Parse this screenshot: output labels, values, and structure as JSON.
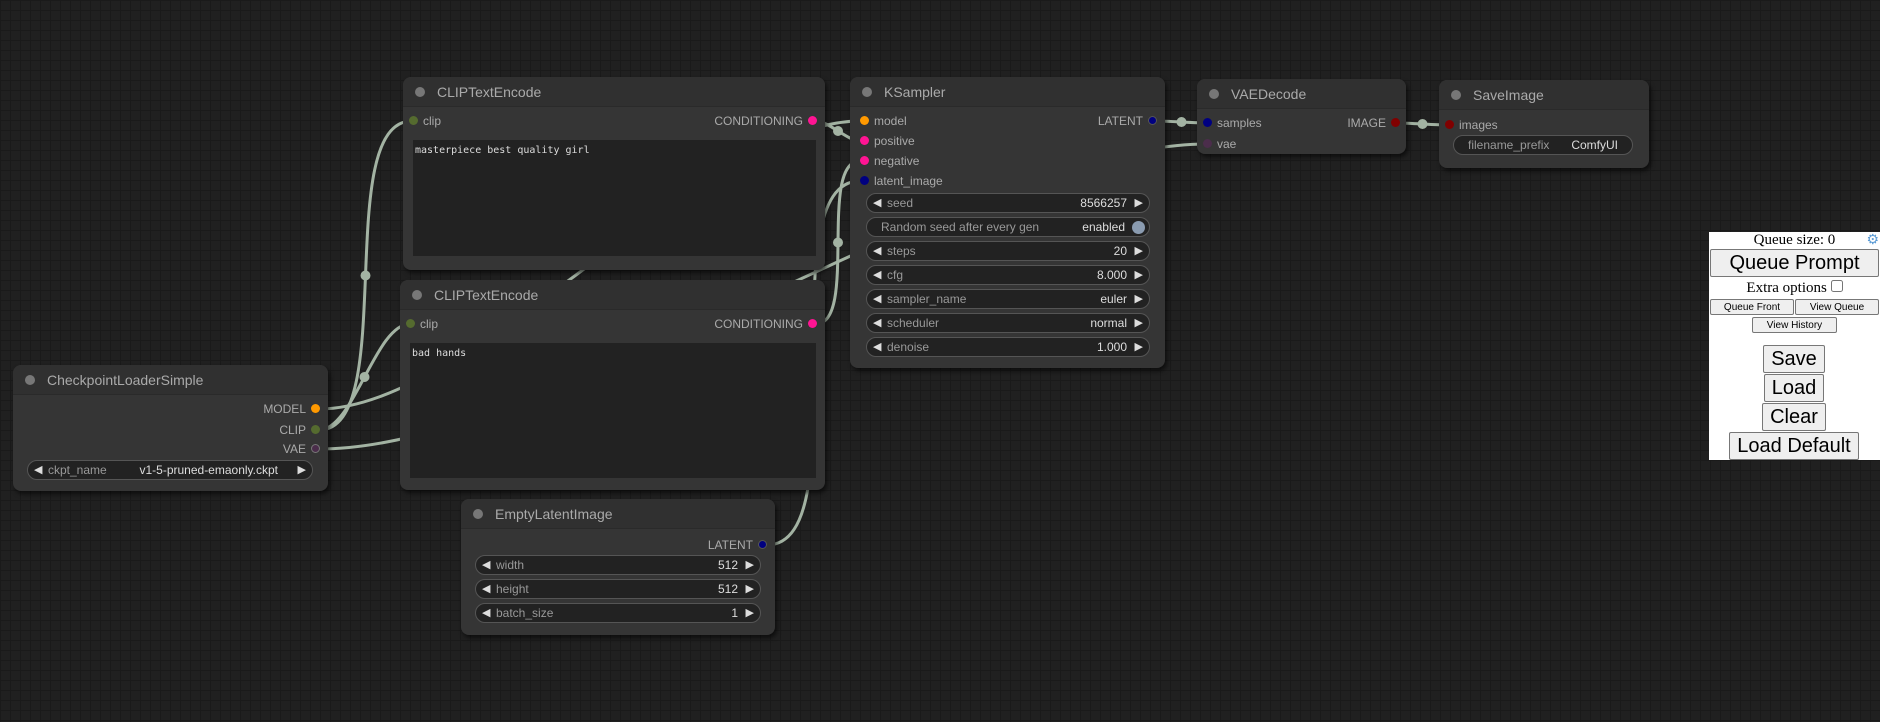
{
  "colors": {
    "model": "#ff9900",
    "clip": "#556b2f",
    "vae": "#4b2d4b",
    "conditioning": "#ff1493",
    "latent": "#000080",
    "image": "#800000",
    "link": "#a3b3a3"
  },
  "nodes": {
    "checkpoint": {
      "title": "CheckpointLoaderSimple",
      "outputs": [
        "MODEL",
        "CLIP",
        "VAE"
      ],
      "widget": {
        "label": "ckpt_name",
        "value": "v1-5-pruned-emaonly.ckpt"
      }
    },
    "clip_pos": {
      "title": "CLIPTextEncode",
      "input": "clip",
      "output": "CONDITIONING",
      "text": "masterpiece best quality girl"
    },
    "clip_neg": {
      "title": "CLIPTextEncode",
      "input": "clip",
      "output": "CONDITIONING",
      "text": "bad hands"
    },
    "ksampler": {
      "title": "KSampler",
      "inputs": [
        "model",
        "positive",
        "negative",
        "latent_image"
      ],
      "output": "LATENT",
      "widgets": [
        {
          "label": "seed",
          "value": "8566257"
        },
        {
          "label": "Random seed after every gen",
          "value": "enabled"
        },
        {
          "label": "steps",
          "value": "20"
        },
        {
          "label": "cfg",
          "value": "8.000"
        },
        {
          "label": "sampler_name",
          "value": "euler"
        },
        {
          "label": "scheduler",
          "value": "normal"
        },
        {
          "label": "denoise",
          "value": "1.000"
        }
      ]
    },
    "vaedecode": {
      "title": "VAEDecode",
      "inputs": [
        "samples",
        "vae"
      ],
      "output": "IMAGE"
    },
    "saveimage": {
      "title": "SaveImage",
      "input": "images",
      "widget": {
        "label": "filename_prefix",
        "value": "ComfyUI"
      }
    },
    "emptylatent": {
      "title": "EmptyLatentImage",
      "output": "LATENT",
      "widgets": [
        {
          "label": "width",
          "value": "512"
        },
        {
          "label": "height",
          "value": "512"
        },
        {
          "label": "batch_size",
          "value": "1"
        }
      ]
    }
  },
  "panel": {
    "queue_size": "Queue size: 0",
    "queue_prompt": "Queue Prompt",
    "extra_options": "Extra options",
    "queue_front": "Queue Front",
    "view_queue": "View Queue",
    "view_history": "View History",
    "save": "Save",
    "load": "Load",
    "clear": "Clear",
    "load_default": "Load Default",
    "settings_icon": "gear-icon"
  }
}
